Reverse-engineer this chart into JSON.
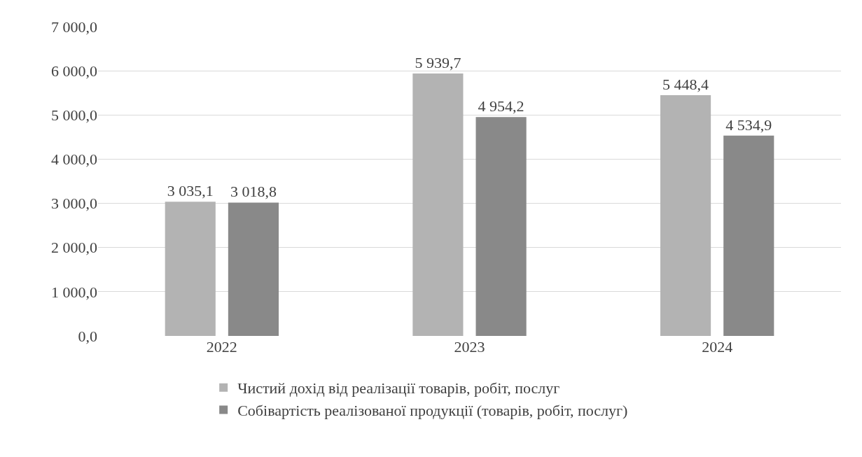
{
  "chart_data": {
    "type": "bar",
    "categories": [
      "2022",
      "2023",
      "2024"
    ],
    "series": [
      {
        "name": "Чистий дохід від реалізації товарів, робіт, послуг",
        "color": "#b3b3b3",
        "values": [
          3035.1,
          5939.7,
          5448.4
        ],
        "value_labels": [
          "3 035,1",
          "5 939,7",
          "5 448,4"
        ]
      },
      {
        "name": "Собівартість реалізованої продукції (товарів, робіт, послуг)",
        "color": "#898989",
        "values": [
          3018.8,
          4954.2,
          4534.9
        ],
        "value_labels": [
          "3 018,8",
          "4 954,2",
          "4 534,9"
        ]
      }
    ],
    "ylim": [
      0,
      7000
    ],
    "yticks": [
      {
        "value": 0,
        "label": "0,0"
      },
      {
        "value": 1000,
        "label": "1 000,0"
      },
      {
        "value": 2000,
        "label": "2 000,0"
      },
      {
        "value": 3000,
        "label": "3 000,0"
      },
      {
        "value": 4000,
        "label": "4 000,0"
      },
      {
        "value": 5000,
        "label": "5 000,0"
      },
      {
        "value": 6000,
        "label": "6 000,0"
      },
      {
        "value": 7000,
        "label": "7 000,0"
      }
    ],
    "grid": "y",
    "legend": "bottom"
  }
}
